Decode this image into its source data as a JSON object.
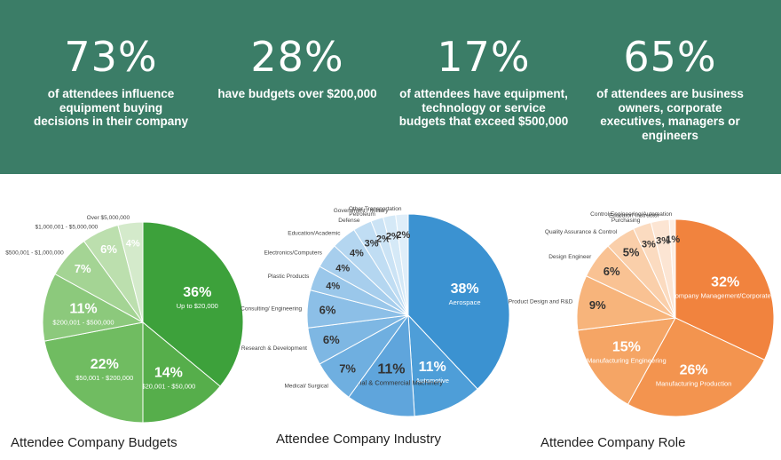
{
  "banner": {
    "color": "#3b7d67",
    "stats": [
      {
        "value": "73%",
        "text": "of attendees influence equipment buying decisions in their company"
      },
      {
        "value": "28%",
        "text": "have budgets over $200,000"
      },
      {
        "value": "17%",
        "text": "of attendees have equipment, technology or service budgets that exceed $500,000"
      },
      {
        "value": "65%",
        "text": "of attendees are business owners, corporate executives, managers or engineers"
      }
    ]
  },
  "chart_data": [
    {
      "type": "pie",
      "title": "Attendee Company Budgets",
      "slices": [
        {
          "label": "Up to $20,000",
          "value": 36,
          "text": "36%",
          "color": "#3da13b"
        },
        {
          "label": "$20,001 - $50,000",
          "value": 14,
          "text": "14%",
          "color": "#56ae4b"
        },
        {
          "label": "$50,001 - $200,000",
          "value": 22,
          "text": "22%",
          "color": "#70bc61"
        },
        {
          "label": "$200,001 - $500,000",
          "value": 11,
          "text": "11%",
          "color": "#8cc97c"
        },
        {
          "label": "$500,001 - $1,000,000",
          "value": 7,
          "text": "7%",
          "color": "#a4d494"
        },
        {
          "label": "$1,000,001 - $5,000,000",
          "value": 6,
          "text": "6%",
          "color": "#bcdfae"
        },
        {
          "label": "Over $5,000,000",
          "value": 4,
          "text": "4%",
          "color": "#d4eacb"
        }
      ]
    },
    {
      "type": "pie",
      "title": "Attendee Company Industry",
      "slices": [
        {
          "label": "Aerospace",
          "value": 38,
          "text": "38%",
          "color": "#3b92d1"
        },
        {
          "label": "Automotive",
          "value": 11,
          "text": "11%",
          "color": "#4e9ed8"
        },
        {
          "label": "Industrial & Commercial Machinery",
          "value": 11,
          "text": "11%",
          "color": "#5fa5dc"
        },
        {
          "label": "Medical/ Surgical",
          "value": 7,
          "text": "7%",
          "color": "#6fafe0"
        },
        {
          "label": "Research & Development",
          "value": 6,
          "text": "6%",
          "color": "#7eb7e3"
        },
        {
          "label": "Consulting/ Engineering",
          "value": 6,
          "text": "6%",
          "color": "#8cbfe7"
        },
        {
          "label": "Plastic Products",
          "value": 4,
          "text": "4%",
          "color": "#9ac7ea"
        },
        {
          "label": "Electronics/Computers",
          "value": 4,
          "text": "4%",
          "color": "#a7ceed"
        },
        {
          "label": "Education/Academic",
          "value": 4,
          "text": "4%",
          "color": "#b4d6f0"
        },
        {
          "label": "Defense",
          "value": 3,
          "text": "3%",
          "color": "#c0ddf3"
        },
        {
          "label": "Petroleum",
          "value": 2,
          "text": "2%",
          "color": "#cbe3f5"
        },
        {
          "label": "Government / Military",
          "value": 2,
          "text": "2%",
          "color": "#d5e9f7"
        },
        {
          "label": "Other Transportation",
          "value": 2,
          "text": "2%",
          "color": "#dfeef9"
        }
      ]
    },
    {
      "type": "pie",
      "title": "Attendee Company Role",
      "slices": [
        {
          "label": "Owner/Company Management/Corporate Executive",
          "value": 32,
          "text": "32%",
          "color": "#f1833e"
        },
        {
          "label": "Manufacturing Production",
          "value": 26,
          "text": "26%",
          "color": "#f3944f"
        },
        {
          "label": "Manufacturing Engineering",
          "value": 15,
          "text": "15%",
          "color": "#f5a565"
        },
        {
          "label": "Product Design and R&D",
          "value": 9,
          "text": "9%",
          "color": "#f7b47b"
        },
        {
          "label": "Design Engineer",
          "value": 6,
          "text": "6%",
          "color": "#f9c293"
        },
        {
          "label": "Quality Assurance & Control",
          "value": 5,
          "text": "5%",
          "color": "#facfaa"
        },
        {
          "label": "Purchasing",
          "value": 3,
          "text": "3%",
          "color": "#fbdbc0"
        },
        {
          "label": "Educator/ Instructor",
          "value": 3,
          "text": "3%",
          "color": "#fce5d3"
        },
        {
          "label": "Control Engineering/Automation",
          "value": 1,
          "text": "1%",
          "color": "#fdeee3"
        }
      ]
    }
  ]
}
